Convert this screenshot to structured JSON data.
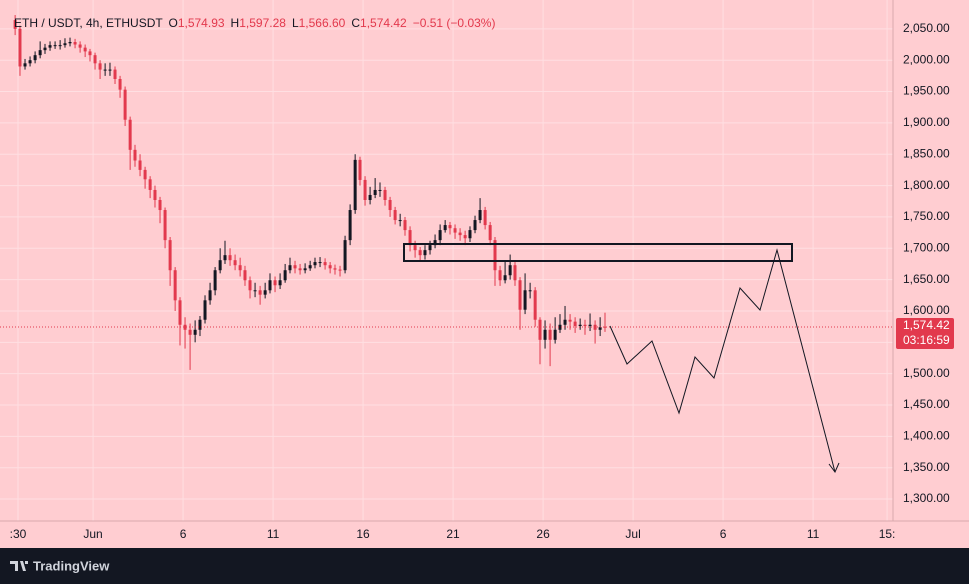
{
  "header": {
    "symbol": "ETH / USDT, 4h, ETHUSDT",
    "fields": [
      {
        "key": "O",
        "value": "1,574.93"
      },
      {
        "key": "H",
        "value": "1,597.28"
      },
      {
        "key": "L",
        "value": "1,566.60"
      },
      {
        "key": "C",
        "value": "1,574.42"
      }
    ],
    "change": "−0.51 (−0.03%)"
  },
  "footer": {
    "brand": "TradingView"
  },
  "chart_data": {
    "type": "candlestick",
    "up_color": "#131722",
    "down_color": "#e2394d",
    "grid": true,
    "last_price_label": "1,574.42",
    "countdown": "03:16:59",
    "x": [
      -3.33,
      -3.06,
      -2.78,
      -2.5,
      -2.22,
      -1.94,
      -1.67,
      -1.39,
      -1.11,
      -0.83,
      -0.56,
      -0.28,
      0,
      0.28,
      0.56,
      0.83,
      1.11,
      1.39,
      1.67,
      1.94,
      2.22,
      2.5,
      2.78,
      3.06,
      3.33,
      3.61,
      3.89,
      4.17,
      4.44,
      4.72,
      5,
      5.28,
      5.56,
      5.83,
      6.11,
      6.39,
      6.67,
      6.94,
      7.22,
      7.5,
      7.78,
      8.06,
      8.33,
      8.61,
      8.89,
      9.17,
      9.44,
      9.72,
      10,
      10.28,
      10.56,
      10.83,
      11.11,
      11.39,
      11.67,
      11.94,
      12.22,
      12.5,
      12.78,
      13.06,
      13.33,
      13.61,
      13.89,
      14.17,
      14.44,
      14.72,
      15,
      15.28,
      15.56,
      15.83,
      16.11,
      16.39,
      16.67,
      16.94,
      17.22,
      17.5,
      17.78,
      18.06,
      18.33,
      18.61,
      18.89,
      19.17,
      19.44,
      19.72,
      20,
      20.28,
      20.56,
      20.83,
      21.11,
      21.39,
      21.67,
      21.94,
      22.22,
      22.5,
      22.78,
      23.06,
      23.33,
      23.61,
      23.89,
      24.17,
      24.44,
      24.72,
      25,
      25.28,
      25.56,
      25.83,
      26.11,
      26.39,
      26.67,
      26.94,
      27.22,
      27.5,
      27.78,
      28.06,
      28.33,
      28.61,
      28.89,
      29.17,
      29.44
    ],
    "open": [
      2064,
      2050,
      1990,
      1995,
      2000,
      2008,
      2016,
      2020,
      2024,
      2024,
      2024,
      2027,
      2029,
      2025,
      2020,
      2014,
      2008,
      1995,
      1985,
      1985,
      1985,
      1970,
      1953,
      1905,
      1857,
      1840,
      1825,
      1810,
      1793,
      1777,
      1761,
      1713,
      1665,
      1617,
      1578,
      1570,
      1562,
      1570,
      1586,
      1617,
      1633,
      1665,
      1681,
      1689,
      1681,
      1673,
      1665,
      1649,
      1633,
      1633,
      1626,
      1633,
      1649,
      1641,
      1649,
      1665,
      1673,
      1668,
      1665,
      1668,
      1673,
      1678,
      1678,
      1673,
      1668,
      1666,
      1665,
      1713,
      1761,
      1841,
      1809,
      1777,
      1785,
      1793,
      1793,
      1777,
      1761,
      1745,
      1745,
      1729,
      1705,
      1697,
      1689,
      1697,
      1705,
      1713,
      1729,
      1737,
      1732,
      1725,
      1721,
      1716,
      1729,
      1745,
      1761,
      1737,
      1713,
      1665,
      1649,
      1657,
      1673,
      1649,
      1602,
      1633,
      1633,
      1586,
      1554,
      1570,
      1554,
      1570,
      1578,
      1586,
      1583,
      1576,
      1578,
      1576,
      1578,
      1570,
      1574.93
    ],
    "high": [
      2072,
      2055,
      2002,
      2006,
      2014,
      2030,
      2026,
      2030,
      2030,
      2032,
      2035,
      2036,
      2034,
      2030,
      2025,
      2018,
      2012,
      2000,
      1995,
      1996,
      1990,
      1975,
      1958,
      1910,
      1865,
      1850,
      1830,
      1815,
      1800,
      1782,
      1765,
      1718,
      1670,
      1622,
      1590,
      1580,
      1585,
      1592,
      1625,
      1645,
      1670,
      1700,
      1712,
      1700,
      1690,
      1685,
      1672,
      1655,
      1645,
      1640,
      1645,
      1660,
      1655,
      1660,
      1675,
      1685,
      1680,
      1675,
      1676,
      1680,
      1685,
      1686,
      1684,
      1678,
      1674,
      1672,
      1720,
      1770,
      1850,
      1846,
      1815,
      1798,
      1812,
      1805,
      1798,
      1782,
      1766,
      1755,
      1750,
      1735,
      1712,
      1702,
      1705,
      1712,
      1722,
      1738,
      1745,
      1742,
      1738,
      1732,
      1728,
      1735,
      1752,
      1780,
      1766,
      1742,
      1718,
      1672,
      1680,
      1690,
      1678,
      1654,
      1660,
      1645,
      1638,
      1590,
      1585,
      1580,
      1590,
      1595,
      1608,
      1595,
      1590,
      1588,
      1586,
      1596,
      1585,
      1590,
      1597.28
    ],
    "low": [
      2040,
      1975,
      1985,
      1990,
      1995,
      2003,
      2010,
      2015,
      2018,
      2017,
      2020,
      2022,
      2019,
      2012,
      2005,
      1998,
      1985,
      1970,
      1975,
      1975,
      1962,
      1940,
      1895,
      1825,
      1830,
      1815,
      1795,
      1780,
      1765,
      1740,
      1700,
      1640,
      1600,
      1545,
      1540,
      1506,
      1550,
      1560,
      1580,
      1610,
      1625,
      1660,
      1675,
      1672,
      1665,
      1655,
      1640,
      1620,
      1622,
      1610,
      1620,
      1628,
      1630,
      1635,
      1645,
      1660,
      1660,
      1658,
      1660,
      1664,
      1668,
      1670,
      1666,
      1660,
      1658,
      1655,
      1660,
      1705,
      1755,
      1800,
      1768,
      1770,
      1780,
      1782,
      1768,
      1750,
      1738,
      1735,
      1720,
      1695,
      1685,
      1680,
      1682,
      1690,
      1700,
      1705,
      1725,
      1722,
      1715,
      1712,
      1705,
      1710,
      1724,
      1740,
      1730,
      1705,
      1640,
      1640,
      1644,
      1650,
      1640,
      1570,
      1595,
      1620,
      1575,
      1515,
      1540,
      1512,
      1548,
      1565,
      1570,
      1570,
      1565,
      1570,
      1562,
      1568,
      1548,
      1560,
      1566.6
    ],
    "close": [
      2050,
      1990,
      1995,
      2000,
      2008,
      2016,
      2020,
      2024,
      2024,
      2024,
      2027,
      2029,
      2025,
      2020,
      2014,
      2008,
      1995,
      1985,
      1985,
      1985,
      1970,
      1953,
      1905,
      1857,
      1840,
      1825,
      1810,
      1793,
      1777,
      1761,
      1713,
      1665,
      1617,
      1578,
      1570,
      1562,
      1570,
      1586,
      1617,
      1633,
      1665,
      1681,
      1689,
      1681,
      1673,
      1665,
      1649,
      1633,
      1633,
      1626,
      1633,
      1649,
      1641,
      1649,
      1665,
      1673,
      1668,
      1665,
      1668,
      1673,
      1678,
      1678,
      1673,
      1668,
      1666,
      1665,
      1713,
      1761,
      1841,
      1809,
      1777,
      1785,
      1793,
      1793,
      1777,
      1761,
      1745,
      1745,
      1729,
      1705,
      1697,
      1689,
      1697,
      1705,
      1713,
      1729,
      1737,
      1732,
      1725,
      1721,
      1716,
      1729,
      1745,
      1761,
      1737,
      1713,
      1665,
      1649,
      1657,
      1673,
      1649,
      1602,
      1633,
      1633,
      1586,
      1554,
      1570,
      1554,
      1570,
      1578,
      1586,
      1583,
      1576,
      1578,
      1576,
      1578,
      1570,
      1574,
      1574.42
    ],
    "xlim": [
      -4.17,
      45.44
    ],
    "ylim": [
      1265,
      2096
    ],
    "xticks": [
      {
        "value": -3.17,
        "label": ":30"
      },
      {
        "value": 1,
        "label": "Jun"
      },
      6,
      11,
      16,
      21,
      26,
      {
        "value": 31,
        "label": "Jul"
      },
      {
        "value": 36,
        "label": "6"
      },
      {
        "value": 41,
        "label": "11"
      },
      {
        "value": 45.11,
        "label": "15:"
      }
    ],
    "yticks": [
      {
        "value": 2050,
        "label": "2,050.00"
      },
      {
        "value": 2000,
        "label": "2,000.00"
      },
      {
        "value": 1950,
        "label": "1,950.00"
      },
      {
        "value": 1900,
        "label": "1,900.00"
      },
      {
        "value": 1850,
        "label": "1,850.00"
      },
      {
        "value": 1800,
        "label": "1,800.00"
      },
      {
        "value": 1750,
        "label": "1,750.00"
      },
      {
        "value": 1700,
        "label": "1,700.00"
      },
      {
        "value": 1650,
        "label": "1,650.00"
      },
      {
        "value": 1600,
        "label": "1,600.00"
      },
      {
        "value": 1550,
        "label": "1,550.00"
      },
      {
        "value": 1500,
        "label": "1,500.00"
      },
      {
        "value": 1450,
        "label": "1,450.00"
      },
      {
        "value": 1400,
        "label": "1,400.00"
      },
      {
        "value": 1350,
        "label": "1,350.00"
      },
      {
        "value": 1300,
        "label": "1,300.00"
      }
    ]
  }
}
